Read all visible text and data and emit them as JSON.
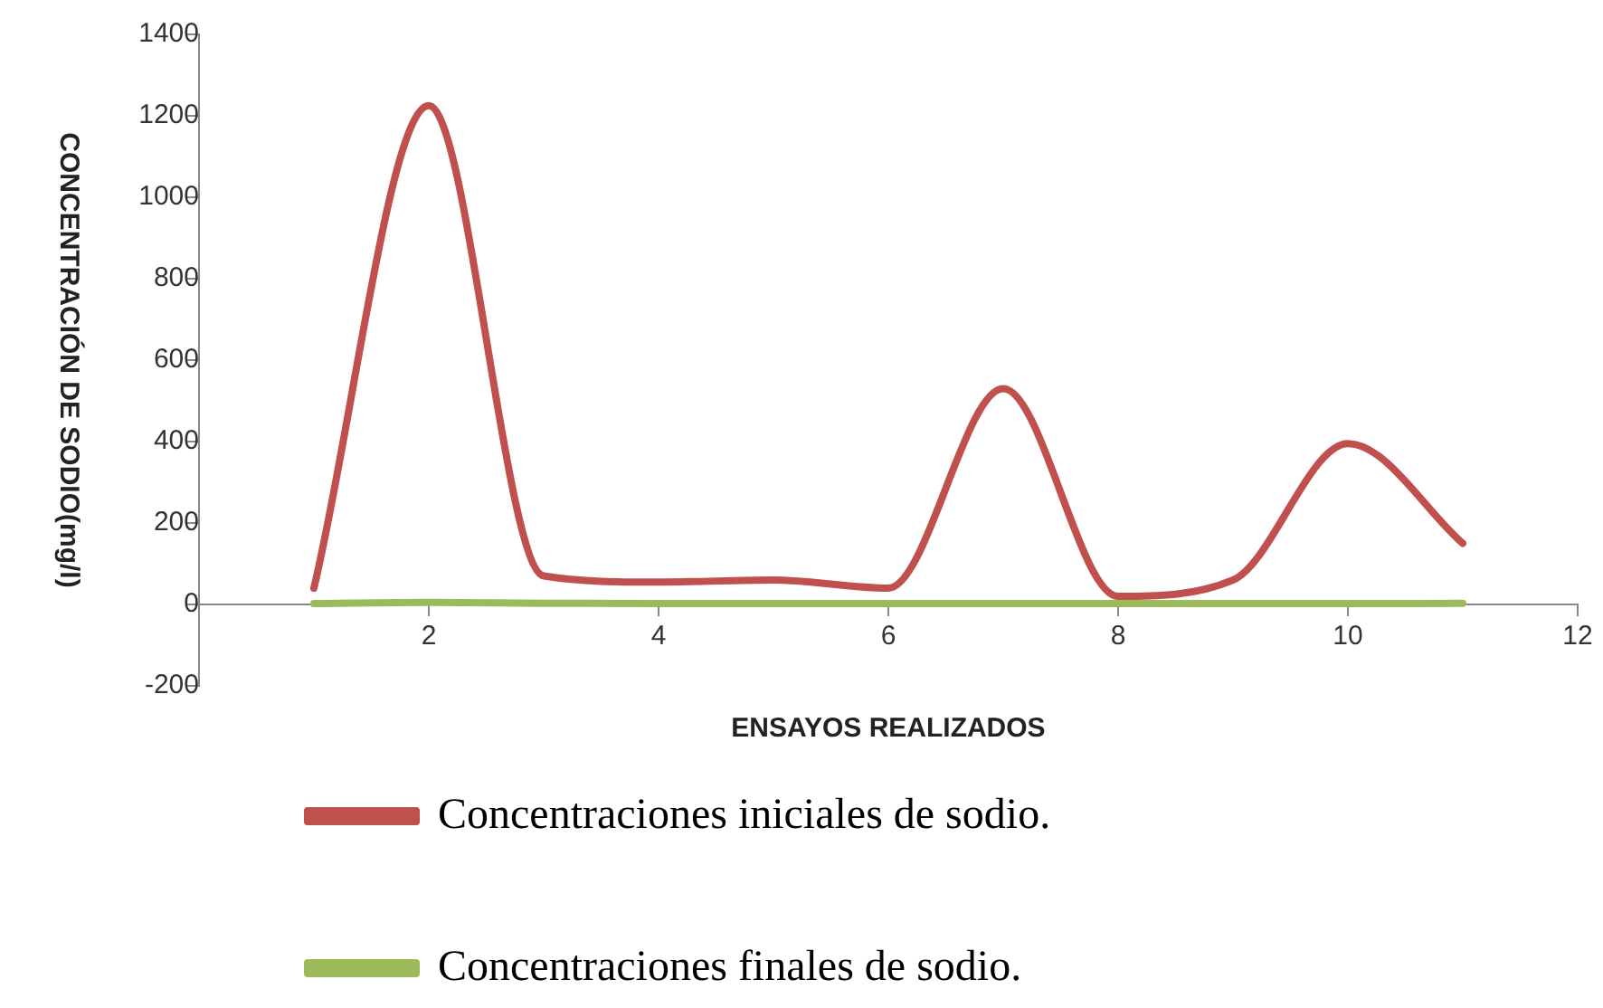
{
  "chart_data": {
    "type": "line",
    "xlabel": "ENSAYOS REALIZADOS",
    "ylabel": "CONCENTRACIÓN DE SODIO(mg/l)",
    "x": [
      1,
      2,
      3,
      4,
      5,
      6,
      7,
      8,
      9,
      10,
      11
    ],
    "series": [
      {
        "name": "Concentraciones iniciales de sodio.",
        "color": "#c0504d",
        "values": [
          40,
          1225,
          70,
          55,
          60,
          40,
          530,
          20,
          60,
          395,
          150
        ]
      },
      {
        "name": "Concentraciones finales de sodio.",
        "color": "#9bbb59",
        "values": [
          2,
          5,
          3,
          2,
          2,
          2,
          2,
          2,
          2,
          2,
          3
        ]
      }
    ],
    "xlim": [
      0,
      12
    ],
    "xticks": [
      2,
      4,
      6,
      8,
      10,
      12
    ],
    "ylim": [
      -200,
      1400
    ],
    "yticks": [
      -200,
      0,
      200,
      400,
      600,
      800,
      1000,
      1200,
      1400
    ],
    "grid": false,
    "legend": "bottom",
    "marker": "none",
    "line_style": "solid"
  }
}
